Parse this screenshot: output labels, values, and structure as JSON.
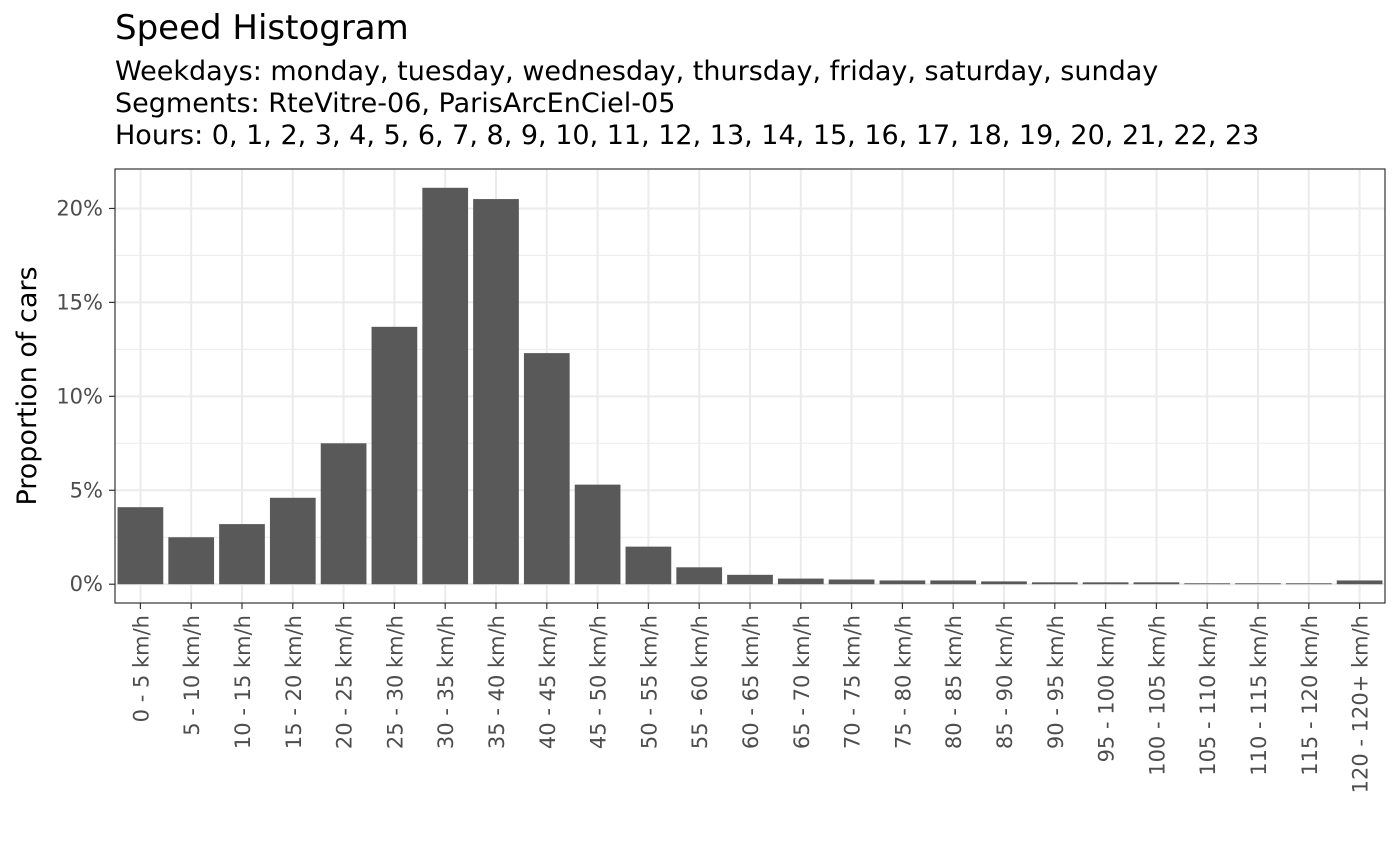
{
  "chart_data": {
    "type": "bar",
    "title": "Speed Histogram",
    "subtitle_lines": [
      "Weekdays: monday, tuesday, wednesday, thursday, friday, saturday, sunday",
      "Segments: RteVitre-06, ParisArcEnCiel-05",
      "Hours: 0, 1, 2, 3, 4, 5, 6, 7, 8, 9, 10, 11, 12, 13, 14, 15, 16, 17, 18, 19, 20, 21, 22, 23"
    ],
    "xlabel": "",
    "ylabel": "Proportion of cars",
    "categories": [
      "0 - 5 km/h",
      "5 - 10 km/h",
      "10 - 15 km/h",
      "15 - 20 km/h",
      "20 - 25 km/h",
      "25 - 30 km/h",
      "30 - 35 km/h",
      "35 - 40 km/h",
      "40 - 45 km/h",
      "45 - 50 km/h",
      "50 - 55 km/h",
      "55 - 60 km/h",
      "60 - 65 km/h",
      "65 - 70 km/h",
      "70 - 75 km/h",
      "75 - 80 km/h",
      "80 - 85 km/h",
      "85 - 90 km/h",
      "90 - 95 km/h",
      "95 - 100 km/h",
      "100 - 105 km/h",
      "105 - 110 km/h",
      "110 - 115 km/h",
      "115 - 120 km/h",
      "120 - 120+ km/h"
    ],
    "values": [
      0.041,
      0.025,
      0.032,
      0.046,
      0.075,
      0.137,
      0.211,
      0.205,
      0.123,
      0.053,
      0.02,
      0.009,
      0.005,
      0.003,
      0.0025,
      0.002,
      0.002,
      0.0015,
      0.001,
      0.001,
      0.001,
      0.0005,
      0.0005,
      0.0005,
      0.002
    ],
    "ylim": [
      -0.01,
      0.221
    ],
    "yticks": [
      0,
      0.05,
      0.1,
      0.15,
      0.2
    ],
    "ytick_labels": [
      "0%",
      "5%",
      "10%",
      "15%",
      "20%"
    ],
    "bar_color": "#595959",
    "grid": true,
    "theme": "bw"
  }
}
